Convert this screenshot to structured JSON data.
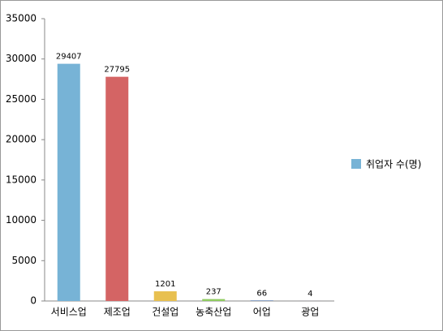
{
  "chart_data": {
    "type": "bar",
    "categories": [
      "서비스업",
      "제조업",
      "건설업",
      "농축산업",
      "어업",
      "광업"
    ],
    "series": [
      {
        "name": "취업자 수(명)",
        "color": "#77b3d6",
        "values": [
          29407,
          27795,
          1201,
          237,
          66,
          4
        ],
        "colors": [
          "#77b3d6",
          "#d46464",
          "#e8c050",
          "#90cc60",
          "#5577aa",
          "#8a6fb0"
        ]
      }
    ],
    "ylim": [
      0,
      35000
    ],
    "yticks": [
      0,
      5000,
      10000,
      15000,
      20000,
      25000,
      30000,
      35000
    ],
    "grid": false,
    "legend": "right"
  }
}
